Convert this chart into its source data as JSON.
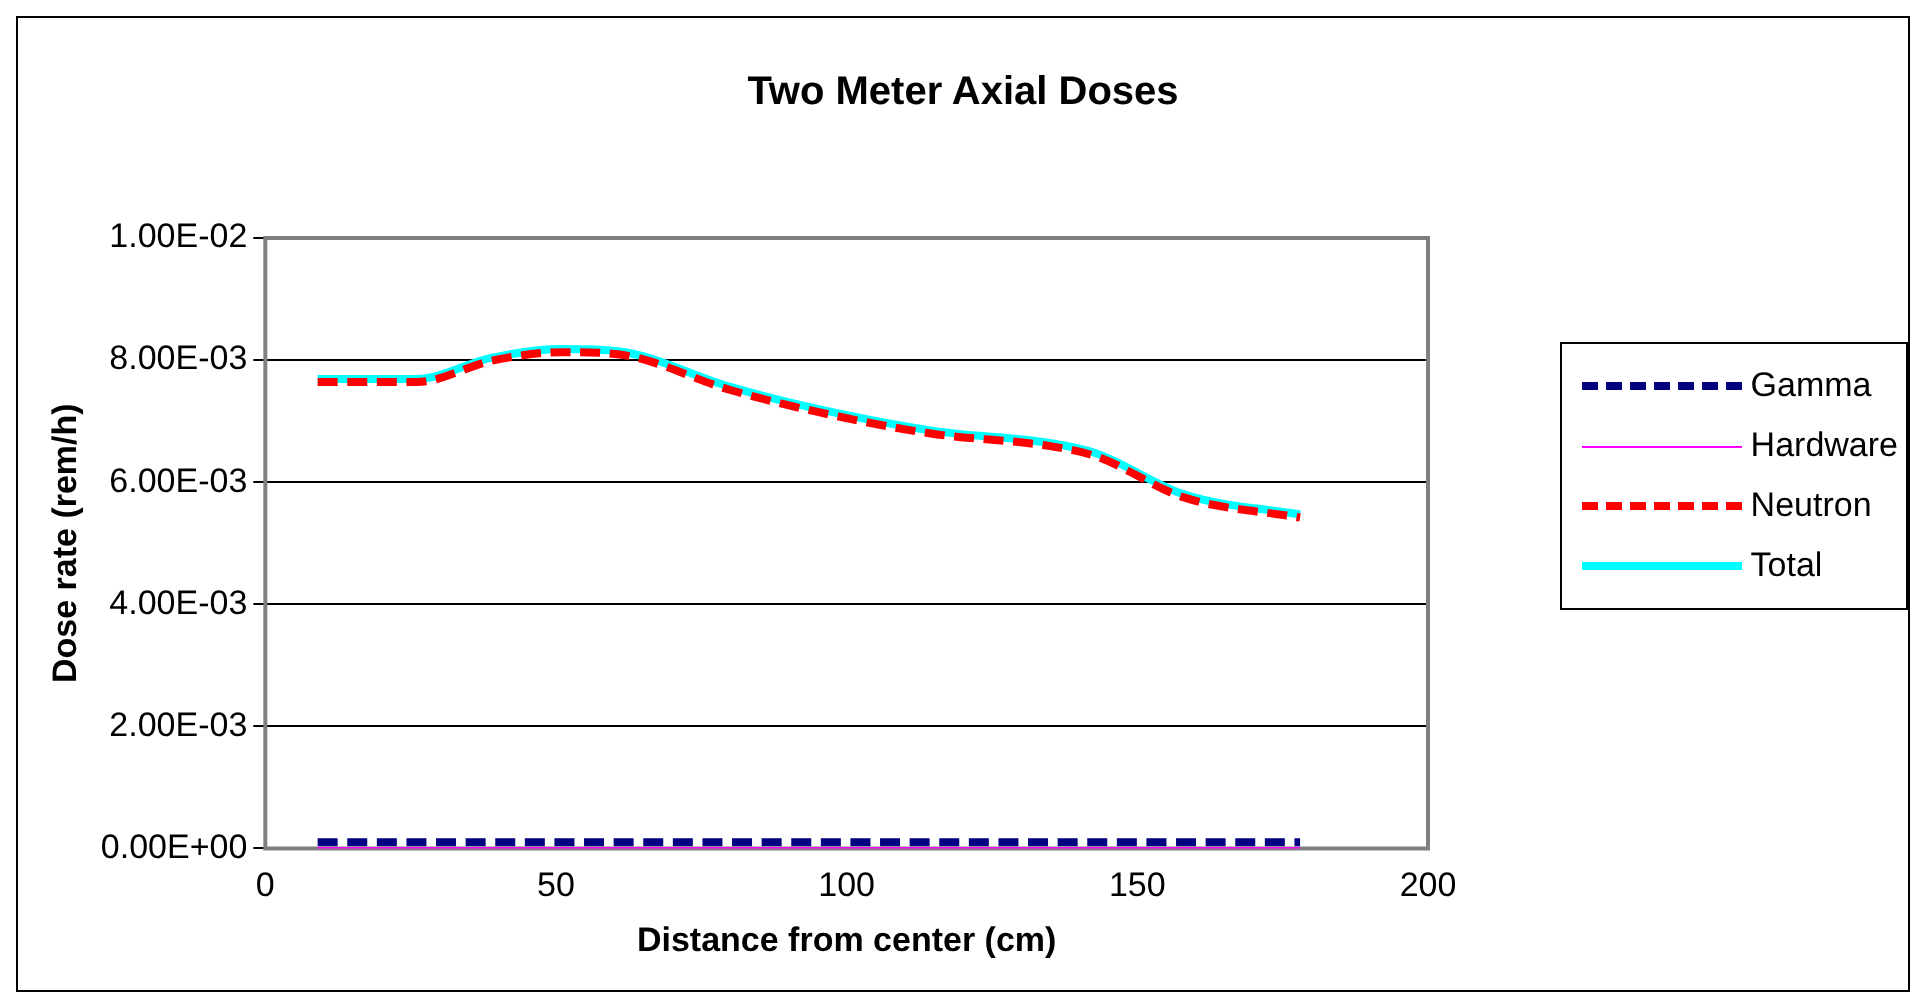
{
  "chart_data": {
    "type": "line",
    "title": "Two Meter Axial Doses",
    "xlabel": "Distance from center (cm)",
    "ylabel": "Dose rate (rem/h)",
    "x": [
      9,
      26,
      39,
      51,
      61,
      80,
      95,
      115,
      135,
      143,
      158,
      178
    ],
    "series": [
      {
        "name": "Gamma",
        "color": "#000080",
        "line_style": "dashed",
        "values": [
          0.0001,
          0.0001,
          0.0001,
          0.0001,
          0.0001,
          0.0001,
          0.0001,
          0.0001,
          0.0001,
          0.0001,
          0.0001,
          0.0001
        ]
      },
      {
        "name": "Hardware",
        "color": "#ff00ff",
        "line_style": "solid",
        "values": [
          0,
          0,
          0,
          0,
          0,
          0,
          0,
          0,
          0,
          0,
          0,
          0
        ]
      },
      {
        "name": "Neutron",
        "color": "#ff0000",
        "line_style": "dashed",
        "values": [
          0.00764,
          0.00764,
          0.00799,
          0.00813,
          0.00809,
          0.00751,
          0.00715,
          0.00679,
          0.00659,
          0.00642,
          0.00575,
          0.00542
        ]
      },
      {
        "name": "Total",
        "color": "#00ffff",
        "line_style": "solid",
        "values": [
          0.00769,
          0.00769,
          0.00804,
          0.00818,
          0.00814,
          0.00756,
          0.0072,
          0.00684,
          0.00664,
          0.00647,
          0.0058,
          0.00547
        ]
      }
    ],
    "xlim": [
      0,
      200
    ],
    "xticks": [
      0,
      50,
      100,
      150,
      200
    ],
    "ylim": [
      0,
      0.01
    ],
    "yticks": [
      {
        "value": 0,
        "label": "0.00E+00"
      },
      {
        "value": 0.002,
        "label": "2.00E-03"
      },
      {
        "value": 0.004,
        "label": "4.00E-03"
      },
      {
        "value": 0.006,
        "label": "6.00E-03"
      },
      {
        "value": 0.008,
        "label": "8.00E-03"
      },
      {
        "value": 0.01,
        "label": "1.00E-02"
      }
    ],
    "grid": "y",
    "legend": "right",
    "marker": "none"
  }
}
